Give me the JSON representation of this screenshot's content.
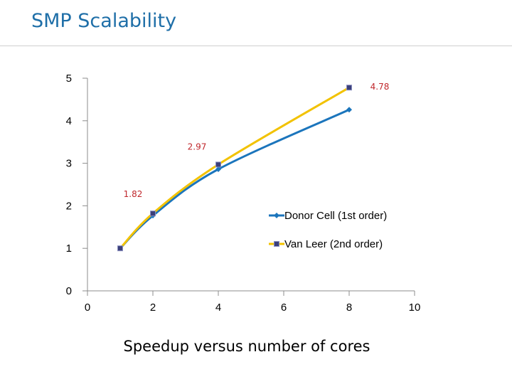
{
  "slide": {
    "title": "SMP Scalability"
  },
  "chart_data": {
    "type": "line",
    "title": "",
    "xlabel": "Speedup versus number of cores",
    "ylabel": "",
    "xlim": [
      0,
      10
    ],
    "ylim": [
      0,
      5
    ],
    "x_ticks": [
      "0",
      "2",
      "4",
      "6",
      "8",
      "10"
    ],
    "y_ticks": [
      "0",
      "1",
      "2",
      "3",
      "4",
      "5"
    ],
    "series": [
      {
        "name": "Donor Cell (1st order)",
        "color": "#1b75bc",
        "marker": "diamond",
        "x": [
          1,
          2,
          4,
          8
        ],
        "y": [
          1,
          1.77,
          2.86,
          4.26
        ]
      },
      {
        "name": "Van Leer (2nd order)",
        "color": "#f2c200",
        "marker": "square",
        "x": [
          1,
          2,
          4,
          8
        ],
        "y": [
          1,
          1.82,
          2.97,
          4.78
        ],
        "data_labels": [
          "",
          "1.82",
          "2.97",
          "4.78"
        ]
      }
    ]
  }
}
